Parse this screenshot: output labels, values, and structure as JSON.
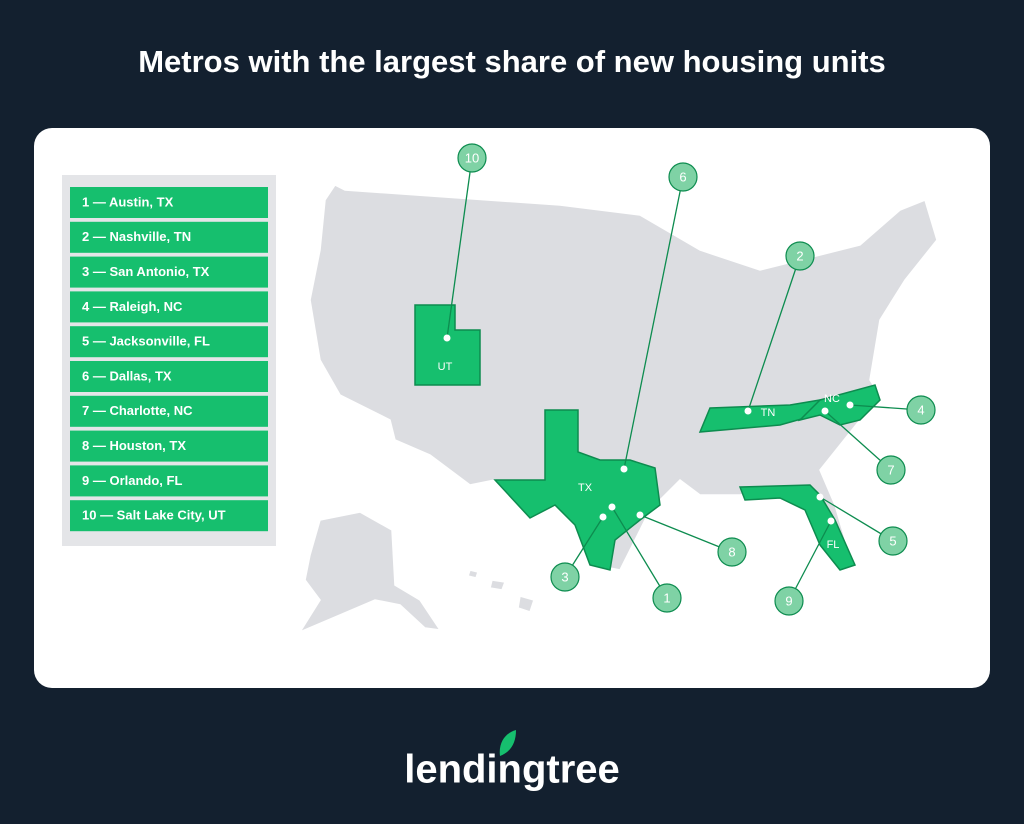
{
  "header": {
    "title": "Metros with the largest share of new housing units"
  },
  "legend": {
    "items": [
      "1 — Austin, TX",
      "2 — Nashville, TN",
      "3 — San Antonio, TX",
      "4 — Raleigh, NC",
      "5 — Jacksonville, FL",
      "6 — Dallas, TX",
      "7 — Charlotte, NC",
      "8 — Houston, TX",
      "9 — Orlando, FL",
      "10 — Salt Lake City, UT"
    ]
  },
  "map": {
    "states": [
      {
        "label": "UT"
      },
      {
        "label": "TX"
      },
      {
        "label": "TN"
      },
      {
        "label": "NC"
      },
      {
        "label": "FL"
      }
    ],
    "callouts": [
      {
        "label": "1"
      },
      {
        "label": "2"
      },
      {
        "label": "3"
      },
      {
        "label": "4"
      },
      {
        "label": "5"
      },
      {
        "label": "6"
      },
      {
        "label": "7"
      },
      {
        "label": "8"
      },
      {
        "label": "9"
      },
      {
        "label": "10"
      }
    ]
  },
  "footer": {
    "logo": "lendingtree"
  }
}
